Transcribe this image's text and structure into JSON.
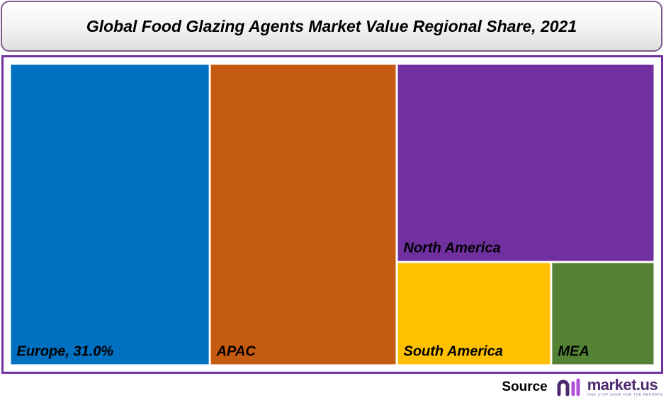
{
  "chart_data": {
    "type": "treemap",
    "title": "Global Food Glazing Agents Market Value Regional Share, 2021",
    "tiles": [
      {
        "name": "Europe",
        "label": "Europe, 31.0%",
        "value": 31.0,
        "color": "#0070c0"
      },
      {
        "name": "APAC",
        "label": "APAC",
        "value": 29.0,
        "color": "#c55a11"
      },
      {
        "name": "North America",
        "label": "North America",
        "value": 26.3,
        "color": "#7030a0"
      },
      {
        "name": "South America",
        "label": "South America",
        "value": 8.2,
        "color": "#ffc000"
      },
      {
        "name": "MEA",
        "label": "MEA",
        "value": 5.5,
        "color": "#548235"
      }
    ]
  },
  "footer": {
    "source_label": "Source",
    "logo_name": "market.us",
    "logo_tagline": "ONE STOP SHOP FOR THE REPORTS"
  },
  "colors": {
    "frame_border": "#7030a0",
    "title_border": "#7b5a8e",
    "logo_purple": "#4b2a6e"
  }
}
